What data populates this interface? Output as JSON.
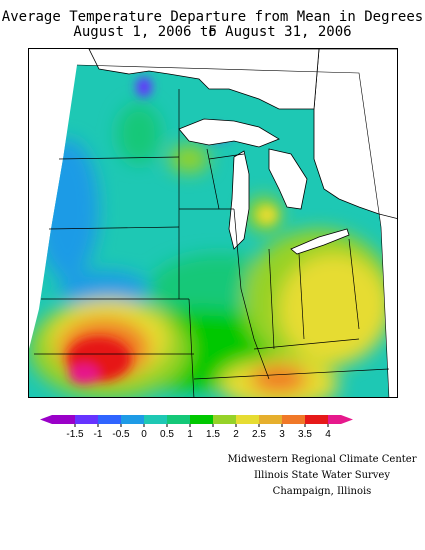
{
  "title_line1": "Average Temperature Departure from Mean in Degrees F",
  "title_line2": "August 1, 2006 to August 31, 2006",
  "legend": {
    "ticks": [
      "-1.5",
      "-1",
      "-0.5",
      "0",
      "0.5",
      "1",
      "1.5",
      "2",
      "2.5",
      "3",
      "3.5",
      "4"
    ],
    "colors": [
      "#9a00c8",
      "#6633ff",
      "#2f64ff",
      "#1e9be6",
      "#1ec8b4",
      "#14c878",
      "#00c800",
      "#96d228",
      "#e6dc32",
      "#e6af2d",
      "#f07828",
      "#e61919",
      "#e6198c"
    ]
  },
  "credits": {
    "line1": "Midwestern Regional Climate Center",
    "line2": "Illinois State Water Survey",
    "line3": "Champaign, Illinois"
  },
  "map_colors": {
    "lake_fill": "#ffffff",
    "border": "#000000",
    "region_base": "#1ec8b4"
  }
}
